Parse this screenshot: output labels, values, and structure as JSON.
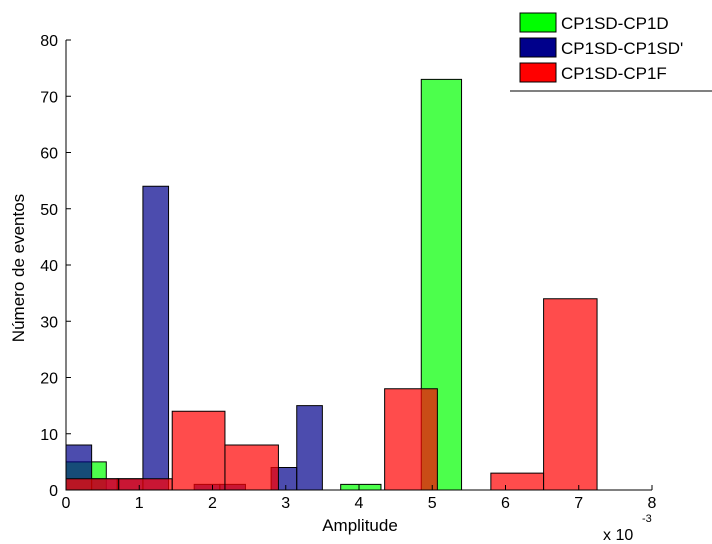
{
  "chart_data": {
    "type": "bar",
    "title": "",
    "xlabel": "Amplitude",
    "ylabel": "Número de eventos",
    "x_multiplier_label": "x 10",
    "x_multiplier_exponent": "-3",
    "xlim": [
      0,
      8
    ],
    "ylim": [
      0,
      80
    ],
    "x_ticks": [
      "0",
      "1",
      "2",
      "3",
      "4",
      "5",
      "6",
      "7",
      "8"
    ],
    "y_ticks": [
      "0",
      "10",
      "20",
      "30",
      "40",
      "50",
      "60",
      "70",
      "80"
    ],
    "grid": false,
    "legend_position": "top-right",
    "series": [
      {
        "name": "CP1SD-CP1D",
        "color": "#00ff00",
        "bins": [
          {
            "x0": 0.0,
            "x1": 0.55,
            "value": 5
          },
          {
            "x0": 3.75,
            "x1": 4.3,
            "value": 1
          },
          {
            "x0": 4.85,
            "x1": 5.4,
            "value": 73
          }
        ]
      },
      {
        "name": "CP1SD-CP1SD'",
        "color": "#00008b",
        "bins": [
          {
            "x0": 0.0,
            "x1": 0.35,
            "value": 8
          },
          {
            "x0": 0.35,
            "x1": 0.7,
            "value": 2
          },
          {
            "x0": 0.7,
            "x1": 1.05,
            "value": 2
          },
          {
            "x0": 1.05,
            "x1": 1.4,
            "value": 54
          },
          {
            "x0": 1.75,
            "x1": 2.1,
            "value": 1
          },
          {
            "x0": 2.1,
            "x1": 2.45,
            "value": 1
          },
          {
            "x0": 2.8,
            "x1": 3.15,
            "value": 4
          },
          {
            "x0": 3.15,
            "x1": 3.5,
            "value": 15
          }
        ]
      },
      {
        "name": "CP1SD-CP1F",
        "color": "#ff0000",
        "bins": [
          {
            "x0": 0.0,
            "x1": 0.72,
            "value": 2
          },
          {
            "x0": 0.72,
            "x1": 1.45,
            "value": 2
          },
          {
            "x0": 1.45,
            "x1": 2.17,
            "value": 14
          },
          {
            "x0": 2.17,
            "x1": 2.9,
            "value": 8
          },
          {
            "x0": 4.35,
            "x1": 5.07,
            "value": 18
          },
          {
            "x0": 5.8,
            "x1": 6.52,
            "value": 3
          },
          {
            "x0": 6.52,
            "x1": 7.25,
            "value": 34
          }
        ]
      }
    ]
  }
}
